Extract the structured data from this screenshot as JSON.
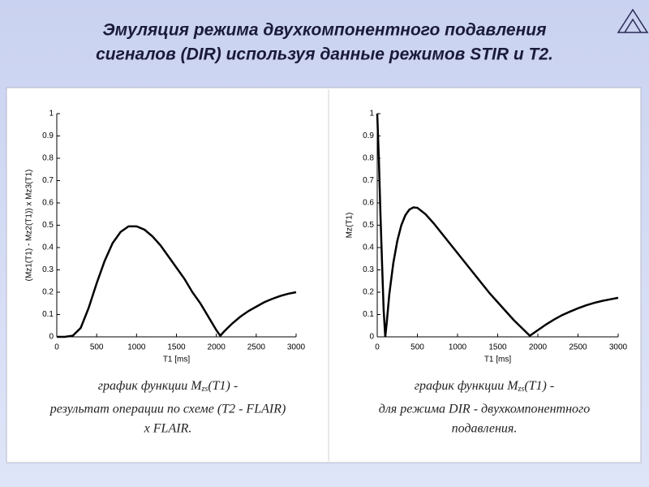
{
  "header": {
    "title_lines": [
      "Эмуляция режима двухкомпонентного подавления",
      "сигналов (DIR) используя данные режимов STIR и T2."
    ]
  },
  "chart_data": [
    {
      "type": "line",
      "x_label": "T1  [ms]",
      "y_label": "(Mz1(T1) - Mz2(T1)) x Mz3(T1)",
      "color": "#000000",
      "x": [
        0,
        100,
        200,
        300,
        400,
        500,
        600,
        700,
        800,
        900,
        1000,
        1100,
        1200,
        1300,
        1400,
        1500,
        1600,
        1700,
        1800,
        1900,
        2000,
        2050,
        2100,
        2200,
        2300,
        2400,
        2500,
        2600,
        2700,
        2800,
        2900,
        3000
      ],
      "values": [
        0,
        0,
        0.005,
        0.04,
        0.13,
        0.24,
        0.34,
        0.42,
        0.47,
        0.495,
        0.495,
        0.48,
        0.45,
        0.41,
        0.36,
        0.31,
        0.26,
        0.2,
        0.15,
        0.09,
        0.03,
        0.005,
        0.025,
        0.06,
        0.09,
        0.115,
        0.135,
        0.155,
        0.17,
        0.183,
        0.193,
        0.2
      ],
      "xlim": [
        0,
        3000
      ],
      "xticks": [
        0,
        500,
        1000,
        1500,
        2000,
        2500,
        3000
      ],
      "ylim": [
        0,
        1
      ],
      "yticks": [
        0,
        0.1,
        0.2,
        0.3,
        0.4,
        0.5,
        0.6,
        0.7,
        0.8,
        0.9,
        1
      ],
      "caption": {
        "prefix": "график функции M",
        "subscript": "zs",
        "suffix": "(T1)  -",
        "lines": [
          "результат операции по схеме (T2 - FLAIR)",
          "x FLAIR."
        ]
      }
    },
    {
      "type": "line",
      "x_label": "T1  [ms]",
      "y_label": "Mz(T1)",
      "color": "#000000",
      "x": [
        0,
        20,
        40,
        60,
        80,
        100,
        120,
        150,
        200,
        250,
        300,
        350,
        400,
        450,
        500,
        600,
        700,
        800,
        900,
        1000,
        1100,
        1200,
        1300,
        1400,
        1500,
        1600,
        1700,
        1800,
        1900,
        2000,
        2100,
        2200,
        2300,
        2400,
        2500,
        2600,
        2700,
        2800,
        2900,
        3000
      ],
      "values": [
        1,
        0.8,
        0.55,
        0.33,
        0.12,
        0,
        0.07,
        0.19,
        0.33,
        0.43,
        0.5,
        0.545,
        0.57,
        0.58,
        0.578,
        0.55,
        0.51,
        0.465,
        0.42,
        0.375,
        0.33,
        0.285,
        0.24,
        0.195,
        0.155,
        0.115,
        0.075,
        0.04,
        0.005,
        0.03,
        0.055,
        0.077,
        0.097,
        0.113,
        0.128,
        0.141,
        0.152,
        0.161,
        0.168,
        0.175
      ],
      "xlim": [
        0,
        3000
      ],
      "xticks": [
        0,
        500,
        1000,
        1500,
        2000,
        2500,
        3000
      ],
      "ylim": [
        0,
        1
      ],
      "yticks": [
        0,
        0.1,
        0.2,
        0.3,
        0.4,
        0.5,
        0.6,
        0.7,
        0.8,
        0.9,
        1
      ],
      "caption": {
        "prefix": "график функции M",
        "subscript": "zs",
        "suffix": "(T1)  -",
        "lines": [
          "для режима DIR - двухкомпонентного",
          "подавления."
        ]
      }
    }
  ]
}
